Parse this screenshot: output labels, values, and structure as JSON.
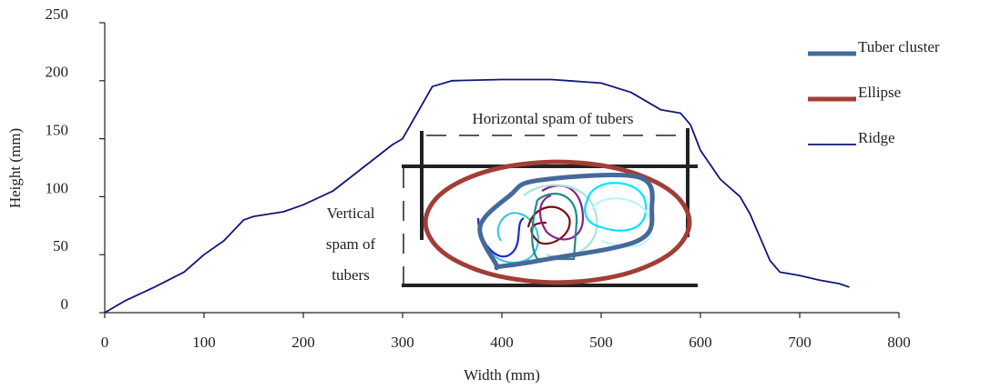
{
  "chart_data": {
    "type": "line",
    "xlabel": "Width (mm)",
    "ylabel": "Height (mm)",
    "xlim": [
      0,
      800
    ],
    "ylim": [
      0,
      250
    ],
    "xticks": [
      0,
      100,
      200,
      300,
      400,
      500,
      600,
      700,
      800
    ],
    "yticks": [
      0,
      50,
      100,
      150,
      200,
      250
    ],
    "legend": "upper right",
    "horizontal_span_label": "Horizontal spam of tubers",
    "vertical_span_label": [
      "Vertical",
      "spam of",
      "tubers"
    ],
    "series": [
      {
        "name": "Tuber cluster",
        "color": "#45699a",
        "closed": true,
        "x": [
          394,
          378,
          408,
          436,
          537,
          551,
          537,
          445,
          399
        ],
        "y": [
          42,
          74,
          101,
          114,
          117,
          89,
          62,
          46,
          40
        ]
      },
      {
        "name": "Ellipse",
        "color": "#a23e36",
        "closed": true,
        "x": [
          589,
          571.2,
          522.5,
          456,
          389.5,
          340.8,
          323,
          340.8,
          389.5,
          456,
          522.5,
          571.2
        ],
        "y": [
          78,
          104,
          123,
          130,
          123,
          104,
          78,
          52,
          33,
          26,
          33,
          52
        ]
      },
      {
        "name": "Ridge",
        "color": "#10167a",
        "closed": false,
        "x": [
          0,
          20,
          50,
          80,
          100,
          120,
          140,
          150,
          180,
          200,
          230,
          260,
          290,
          300,
          310,
          320,
          330,
          350,
          400,
          450,
          500,
          530,
          560,
          580,
          590,
          600,
          620,
          640,
          650,
          660,
          670,
          680,
          700,
          720,
          740,
          750
        ],
        "y": [
          0,
          10,
          22,
          35,
          50,
          62,
          80,
          83,
          87,
          93,
          105,
          125,
          145,
          150,
          165,
          180,
          195,
          200,
          201,
          201,
          198,
          190,
          175,
          172,
          162,
          140,
          115,
          100,
          85,
          65,
          45,
          35,
          32,
          28,
          25,
          22
        ]
      }
    ]
  }
}
